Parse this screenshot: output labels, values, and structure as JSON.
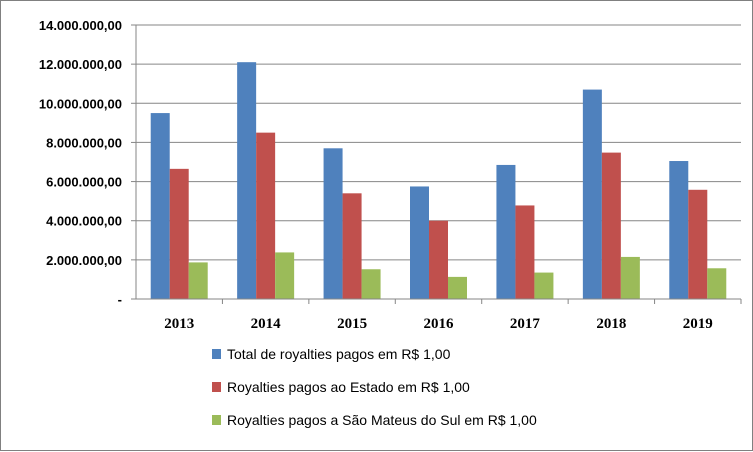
{
  "chart_data": {
    "type": "bar",
    "categories": [
      "2013",
      "2014",
      "2015",
      "2016",
      "2017",
      "2018",
      "2019"
    ],
    "series": [
      {
        "name": "Total de royalties pagos em R$ 1,00",
        "color": "#4F81BD",
        "values": [
          9500000,
          12100000,
          7700000,
          5750000,
          6850000,
          10700000,
          7050000
        ]
      },
      {
        "name": "Royalties pagos ao Estado em R$ 1,00",
        "color": "#C0504D",
        "values": [
          6650000,
          8500000,
          5400000,
          4000000,
          4780000,
          7480000,
          5580000
        ]
      },
      {
        "name": "Royalties pagos a São Mateus do Sul em R$ 1,00",
        "color": "#9BBB59",
        "values": [
          1870000,
          2380000,
          1520000,
          1130000,
          1350000,
          2150000,
          1570000
        ]
      }
    ],
    "ylim": [
      0,
      14000000
    ],
    "y_ticks": [
      0,
      2000000,
      4000000,
      6000000,
      8000000,
      10000000,
      12000000,
      14000000
    ],
    "y_tick_labels": [
      "-",
      "2.000.000,00",
      "4.000.000,00",
      "6.000.000,00",
      "8.000.000,00",
      "10.000.000,00",
      "12.000.000,00",
      "14.000.000,00"
    ],
    "grid": true,
    "legend_position": "bottom"
  }
}
